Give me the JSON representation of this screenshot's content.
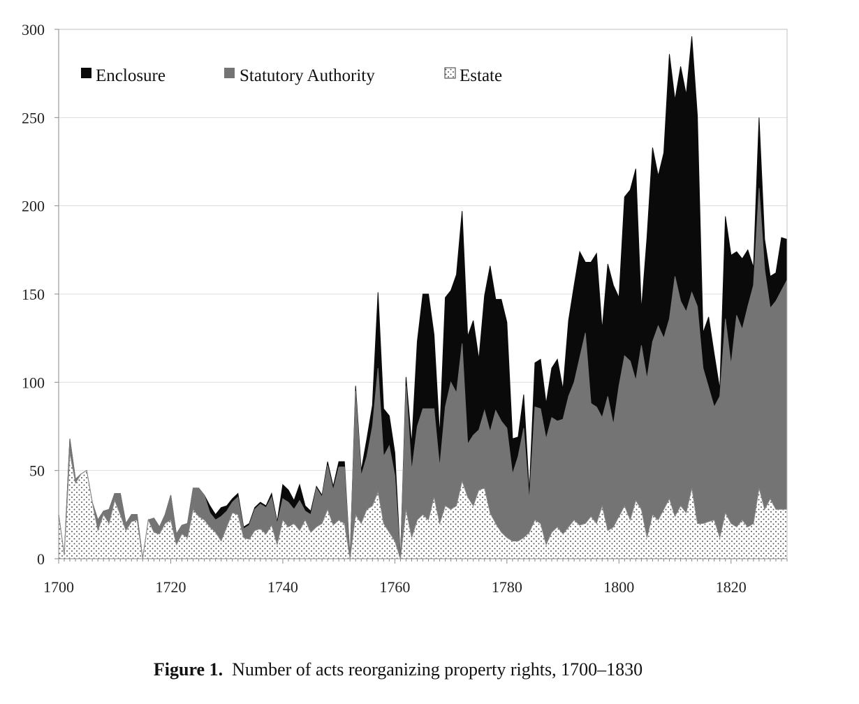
{
  "caption": {
    "label": "Figure 1.",
    "text": "Number of acts reorganizing property rights, 1700–1830"
  },
  "colors": {
    "enclosure": "#0a0a0a",
    "statutory": "#747474",
    "estate_bg": "#ffffff",
    "estate_dots": "#555555",
    "grid": "#dddddd",
    "frame": "#bfbfbf"
  },
  "chart_data": {
    "type": "area",
    "stacked": true,
    "title": "",
    "xlabel": "",
    "ylabel": "",
    "xlim": [
      1700,
      1830
    ],
    "ylim": [
      0,
      300
    ],
    "x_ticks": [
      "1700",
      "1720",
      "1740",
      "1760",
      "1780",
      "1800",
      "1820"
    ],
    "y_ticks": [
      "0",
      "50",
      "100",
      "150",
      "200",
      "250",
      "300"
    ],
    "grid": "horizontal",
    "legend_position": "top-left",
    "x": [
      1700,
      1701,
      1702,
      1703,
      1704,
      1705,
      1706,
      1707,
      1708,
      1709,
      1710,
      1711,
      1712,
      1713,
      1714,
      1715,
      1716,
      1717,
      1718,
      1719,
      1720,
      1721,
      1722,
      1723,
      1724,
      1725,
      1726,
      1727,
      1728,
      1729,
      1730,
      1731,
      1732,
      1733,
      1734,
      1735,
      1736,
      1737,
      1738,
      1739,
      1740,
      1741,
      1742,
      1743,
      1744,
      1745,
      1746,
      1747,
      1748,
      1749,
      1750,
      1751,
      1752,
      1753,
      1754,
      1755,
      1756,
      1757,
      1758,
      1759,
      1760,
      1761,
      1762,
      1763,
      1764,
      1765,
      1766,
      1767,
      1768,
      1769,
      1770,
      1771,
      1772,
      1773,
      1774,
      1775,
      1776,
      1777,
      1778,
      1779,
      1780,
      1781,
      1782,
      1783,
      1784,
      1785,
      1786,
      1787,
      1788,
      1789,
      1790,
      1791,
      1792,
      1793,
      1794,
      1795,
      1796,
      1797,
      1798,
      1799,
      1800,
      1801,
      1802,
      1803,
      1804,
      1805,
      1806,
      1807,
      1808,
      1809,
      1810,
      1811,
      1812,
      1813,
      1814,
      1815,
      1816,
      1817,
      1818,
      1819,
      1820,
      1821,
      1822,
      1823,
      1824,
      1825,
      1826,
      1827,
      1828,
      1829,
      1830
    ],
    "series": [
      {
        "name": "Estate",
        "values": [
          25,
          2,
          60,
          43,
          48,
          50,
          32,
          16,
          25,
          20,
          33,
          25,
          16,
          21,
          22,
          0,
          22,
          15,
          14,
          20,
          22,
          8,
          14,
          12,
          28,
          24,
          22,
          18,
          15,
          10,
          18,
          26,
          25,
          12,
          11,
          16,
          17,
          14,
          19,
          8,
          22,
          18,
          20,
          16,
          22,
          15,
          18,
          20,
          28,
          19,
          22,
          20,
          0,
          25,
          20,
          28,
          30,
          38,
          20,
          15,
          10,
          0,
          28,
          12,
          22,
          25,
          22,
          35,
          20,
          30,
          28,
          30,
          44,
          35,
          30,
          39,
          40,
          26,
          20,
          15,
          12,
          10,
          10,
          12,
          15,
          22,
          20,
          8,
          15,
          18,
          14,
          18,
          22,
          19,
          20,
          24,
          20,
          30,
          16,
          18,
          24,
          30,
          22,
          33,
          28,
          12,
          25,
          22,
          28,
          34,
          24,
          30,
          26,
          40,
          20,
          20,
          21,
          22,
          12,
          26,
          20,
          18,
          22,
          18,
          20,
          40,
          28,
          34,
          28,
          28,
          28
        ]
      },
      {
        "name": "Statutory Authority",
        "values": [
          0,
          0,
          8,
          2,
          0,
          0,
          0,
          6,
          2,
          8,
          4,
          12,
          4,
          4,
          3,
          0,
          0,
          8,
          4,
          5,
          14,
          6,
          5,
          8,
          12,
          16,
          14,
          8,
          7,
          14,
          9,
          6,
          10,
          5,
          8,
          12,
          14,
          15,
          16,
          12,
          12,
          14,
          8,
          17,
          5,
          10,
          22,
          15,
          25,
          20,
          30,
          32,
          0,
          70,
          27,
          30,
          45,
          70,
          38,
          49,
          37,
          0,
          70,
          38,
          53,
          60,
          63,
          50,
          32,
          56,
          72,
          64,
          78,
          30,
          40,
          34,
          44,
          46,
          64,
          63,
          62,
          38,
          48,
          62,
          18,
          64,
          65,
          60,
          65,
          60,
          65,
          74,
          78,
          95,
          108,
          64,
          66,
          50,
          76,
          58,
          74,
          85,
          90,
          68,
          93,
          90,
          98,
          110,
          97,
          102,
          136,
          116,
          114,
          111,
          123,
          88,
          76,
          64,
          80,
          110,
          90,
          120,
          108,
          125,
          135,
          170,
          136,
          108,
          118,
          124,
          130
        ]
      },
      {
        "name": "Enclosure",
        "values": [
          0,
          0,
          0,
          0,
          0,
          0,
          0,
          0,
          0,
          0,
          0,
          0,
          0,
          0,
          0,
          0,
          0,
          0,
          0,
          0,
          0,
          0,
          0,
          0,
          0,
          0,
          0,
          4,
          3,
          5,
          3,
          2,
          2,
          1,
          1,
          1,
          1,
          1,
          2,
          1,
          8,
          7,
          5,
          9,
          3,
          2,
          1,
          1,
          2,
          2,
          3,
          3,
          0,
          3,
          3,
          10,
          12,
          43,
          27,
          17,
          13,
          0,
          5,
          15,
          48,
          65,
          65,
          42,
          18,
          62,
          52,
          67,
          75,
          61,
          65,
          40,
          65,
          94,
          63,
          69,
          60,
          20,
          11,
          19,
          5,
          25,
          28,
          20,
          28,
          35,
          17,
          43,
          55,
          60,
          40,
          80,
          87,
          50,
          75,
          79,
          50,
          90,
          97,
          120,
          20,
          80,
          110,
          85,
          105,
          150,
          100,
          133,
          123,
          145,
          108,
          20,
          40,
          30,
          4,
          58,
          62,
          36,
          40,
          32,
          10,
          40,
          17,
          18,
          16,
          30,
          23
        ]
      }
    ]
  }
}
